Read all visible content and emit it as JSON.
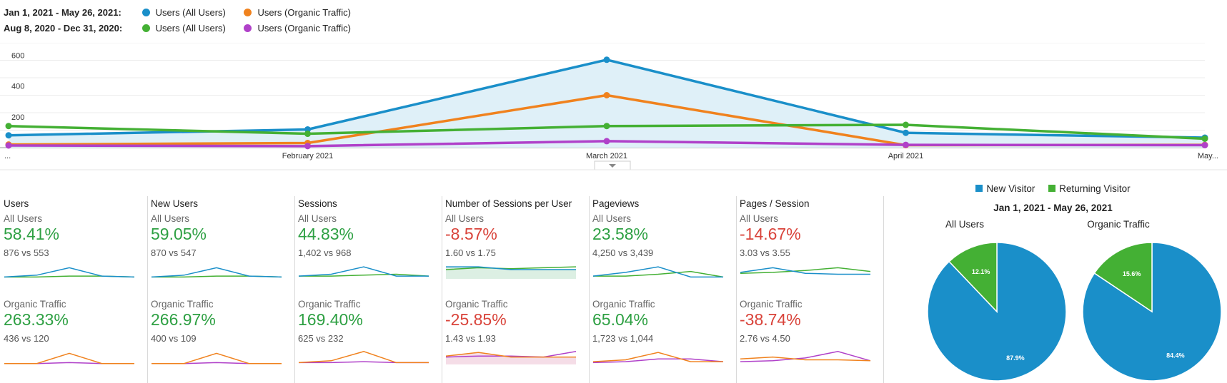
{
  "legend": {
    "rows": [
      {
        "period": "Jan 1, 2021 - May 26, 2021:",
        "items": [
          {
            "label": "Users (All Users)",
            "color": "#1a8fc9"
          },
          {
            "label": "Users (Organic Traffic)",
            "color": "#f0821e"
          }
        ]
      },
      {
        "period": "Aug 8, 2020 - Dec 31, 2020:",
        "items": [
          {
            "label": "Users (All Users)",
            "color": "#44b034"
          },
          {
            "label": "Users (Organic Traffic)",
            "color": "#b041c9"
          }
        ]
      }
    ]
  },
  "chart_data": [
    {
      "type": "line",
      "x": [
        "...",
        "February 2021",
        "March 2021",
        "April 2021",
        "May..."
      ],
      "yticks": [
        200,
        400,
        600
      ],
      "ylim": [
        0,
        680
      ],
      "grid": true,
      "series": [
        {
          "name": "Users (All Users) Jan 1, 2021 - May 26, 2021",
          "color": "#1a8fc9",
          "values": [
            80,
            118,
            570,
            96,
            65
          ],
          "fill": true
        },
        {
          "name": "Users (Organic Traffic) Jan 1, 2021 - May 26, 2021",
          "color": "#f0821e",
          "values": [
            20,
            30,
            340,
            16,
            18
          ]
        },
        {
          "name": "Users (All Users) Aug 8, 2020 - Dec 31, 2020",
          "color": "#44b034",
          "values": [
            140,
            90,
            140,
            148,
            58
          ]
        },
        {
          "name": "Users (Organic Traffic) Aug 8, 2020 - Dec 31, 2020",
          "color": "#b041c9",
          "values": [
            14,
            10,
            42,
            18,
            16
          ]
        }
      ]
    },
    {
      "type": "pie",
      "title": "Jan 1, 2021 - May 26, 2021",
      "legend": [
        {
          "label": "New Visitor",
          "color": "#1a8fc9"
        },
        {
          "label": "Returning Visitor",
          "color": "#44b034"
        }
      ],
      "pies": [
        {
          "name": "All Users",
          "slices": [
            {
              "label": "New Visitor",
              "value": 87.9,
              "display": "87.9%"
            },
            {
              "label": "Returning Visitor",
              "value": 12.1,
              "display": "12.1%"
            }
          ]
        },
        {
          "name": "Organic Traffic",
          "slices": [
            {
              "label": "New Visitor",
              "value": 84.4,
              "display": "84.4%"
            },
            {
              "label": "Returning Visitor",
              "value": 15.6,
              "display": "15.6%"
            }
          ]
        }
      ]
    }
  ],
  "scorecards": [
    {
      "title": "Users",
      "all": {
        "label": "All Users",
        "pct": "58.41%",
        "positive": true,
        "cmp": "876 vs 553",
        "spark": {
          "type": "lines",
          "a": [
            2,
            4,
            12,
            3,
            2
          ],
          "b": [
            2,
            2,
            3,
            3,
            2
          ],
          "ca": "#1a8fc9",
          "cb": "#44b034"
        }
      },
      "org": {
        "label": "Organic Traffic",
        "pct": "263.33%",
        "positive": true,
        "cmp": "436 vs 120",
        "spark": {
          "type": "lines",
          "a": [
            1,
            1,
            12,
            1,
            1
          ],
          "b": [
            1,
            1,
            2,
            1,
            1
          ],
          "ca": "#f0821e",
          "cb": "#b041c9"
        }
      }
    },
    {
      "title": "New Users",
      "all": {
        "label": "All Users",
        "pct": "59.05%",
        "positive": true,
        "cmp": "870 vs 547",
        "spark": {
          "type": "lines",
          "a": [
            2,
            4,
            12,
            3,
            2
          ],
          "b": [
            2,
            2,
            3,
            3,
            2
          ],
          "ca": "#1a8fc9",
          "cb": "#44b034"
        }
      },
      "org": {
        "label": "Organic Traffic",
        "pct": "266.97%",
        "positive": true,
        "cmp": "400 vs 109",
        "spark": {
          "type": "lines",
          "a": [
            1,
            1,
            12,
            1,
            1
          ],
          "b": [
            1,
            1,
            2,
            1,
            1
          ],
          "ca": "#f0821e",
          "cb": "#b041c9"
        }
      }
    },
    {
      "title": "Sessions",
      "all": {
        "label": "All Users",
        "pct": "44.83%",
        "positive": true,
        "cmp": "1,402 vs 968",
        "spark": {
          "type": "lines",
          "a": [
            3,
            5,
            13,
            3,
            3
          ],
          "b": [
            3,
            3,
            4,
            5,
            3
          ],
          "ca": "#1a8fc9",
          "cb": "#44b034"
        }
      },
      "org": {
        "label": "Organic Traffic",
        "pct": "169.40%",
        "positive": true,
        "cmp": "625 vs 232",
        "spark": {
          "type": "lines",
          "a": [
            2,
            4,
            14,
            2,
            2
          ],
          "b": [
            2,
            2,
            3,
            2,
            2
          ],
          "ca": "#f0821e",
          "cb": "#b041c9"
        }
      }
    },
    {
      "title": "Number of Sessions per User",
      "all": {
        "label": "All Users",
        "pct": "-8.57%",
        "positive": false,
        "cmp": "1.60 vs 1.75",
        "spark": {
          "type": "area",
          "a": [
            13,
            13,
            10,
            10,
            10
          ],
          "b": [
            10,
            12,
            11,
            12,
            13
          ],
          "ca": "#1a8fc9",
          "cb": "#44b034",
          "fill": "#dcefe3"
        }
      },
      "org": {
        "label": "Organic Traffic",
        "pct": "-25.85%",
        "positive": false,
        "cmp": "1.43 vs 1.93",
        "spark": {
          "type": "area",
          "a": [
            9,
            13,
            8,
            8,
            8
          ],
          "b": [
            8,
            9,
            9,
            8,
            14
          ],
          "ca": "#f0821e",
          "cb": "#b041c9",
          "fill": "#f5dde7"
        }
      }
    },
    {
      "title": "Pageviews",
      "all": {
        "label": "All Users",
        "pct": "23.58%",
        "positive": true,
        "cmp": "4,250 vs 3,439",
        "spark": {
          "type": "lines",
          "a": [
            3,
            7,
            13,
            2,
            2
          ],
          "b": [
            3,
            3,
            5,
            8,
            2
          ],
          "ca": "#1a8fc9",
          "cb": "#44b034"
        }
      },
      "org": {
        "label": "Organic Traffic",
        "pct": "65.04%",
        "positive": true,
        "cmp": "1,723 vs 1,044",
        "spark": {
          "type": "lines",
          "a": [
            3,
            5,
            13,
            3,
            3
          ],
          "b": [
            2,
            3,
            6,
            6,
            3
          ],
          "ca": "#f0821e",
          "cb": "#b041c9"
        }
      }
    },
    {
      "title": "Pages / Session",
      "all": {
        "label": "All Users",
        "pct": "-14.67%",
        "positive": false,
        "cmp": "3.03 vs 3.55",
        "spark": {
          "type": "lines",
          "a": [
            7,
            12,
            6,
            5,
            5
          ],
          "b": [
            6,
            7,
            9,
            12,
            8
          ],
          "ca": "#1a8fc9",
          "cb": "#44b034"
        }
      },
      "org": {
        "label": "Organic Traffic",
        "pct": "-38.74%",
        "positive": false,
        "cmp": "2.76 vs 4.50",
        "spark": {
          "type": "lines",
          "a": [
            6,
            8,
            5,
            5,
            4
          ],
          "b": [
            3,
            4,
            7,
            14,
            4
          ],
          "ca": "#f0821e",
          "cb": "#b041c9"
        }
      }
    }
  ]
}
